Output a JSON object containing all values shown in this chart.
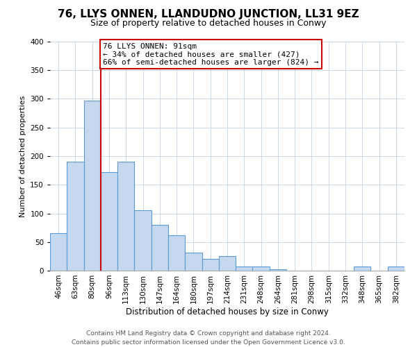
{
  "title": "76, LLYS ONNEN, LLANDUDNO JUNCTION, LL31 9EZ",
  "subtitle": "Size of property relative to detached houses in Conwy",
  "xlabel": "Distribution of detached houses by size in Conwy",
  "ylabel": "Number of detached properties",
  "bar_labels": [
    "46sqm",
    "63sqm",
    "80sqm",
    "96sqm",
    "113sqm",
    "130sqm",
    "147sqm",
    "164sqm",
    "180sqm",
    "197sqm",
    "214sqm",
    "231sqm",
    "248sqm",
    "264sqm",
    "281sqm",
    "298sqm",
    "315sqm",
    "332sqm",
    "348sqm",
    "365sqm",
    "382sqm"
  ],
  "bar_values": [
    65,
    190,
    297,
    172,
    190,
    106,
    80,
    62,
    31,
    21,
    25,
    7,
    7,
    2,
    0,
    0,
    0,
    0,
    7,
    0,
    7
  ],
  "bar_color": "#c5d8f0",
  "bar_edge_color": "#5b9bd5",
  "vline_pos": 2.5,
  "vline_color": "#cc0000",
  "annotation_text": "76 LLYS ONNEN: 91sqm\n← 34% of detached houses are smaller (427)\n66% of semi-detached houses are larger (824) →",
  "annotation_box_color": "#ffffff",
  "annotation_box_edge": "#cc0000",
  "ylim": [
    0,
    400
  ],
  "yticks": [
    0,
    50,
    100,
    150,
    200,
    250,
    300,
    350,
    400
  ],
  "footer1": "Contains HM Land Registry data © Crown copyright and database right 2024.",
  "footer2": "Contains public sector information licensed under the Open Government Licence v3.0.",
  "background_color": "#ffffff",
  "grid_color": "#c8d8e8",
  "title_fontsize": 11,
  "subtitle_fontsize": 9,
  "xlabel_fontsize": 8.5,
  "ylabel_fontsize": 8,
  "tick_fontsize": 7.5,
  "annotation_fontsize": 8,
  "footer_fontsize": 6.5
}
